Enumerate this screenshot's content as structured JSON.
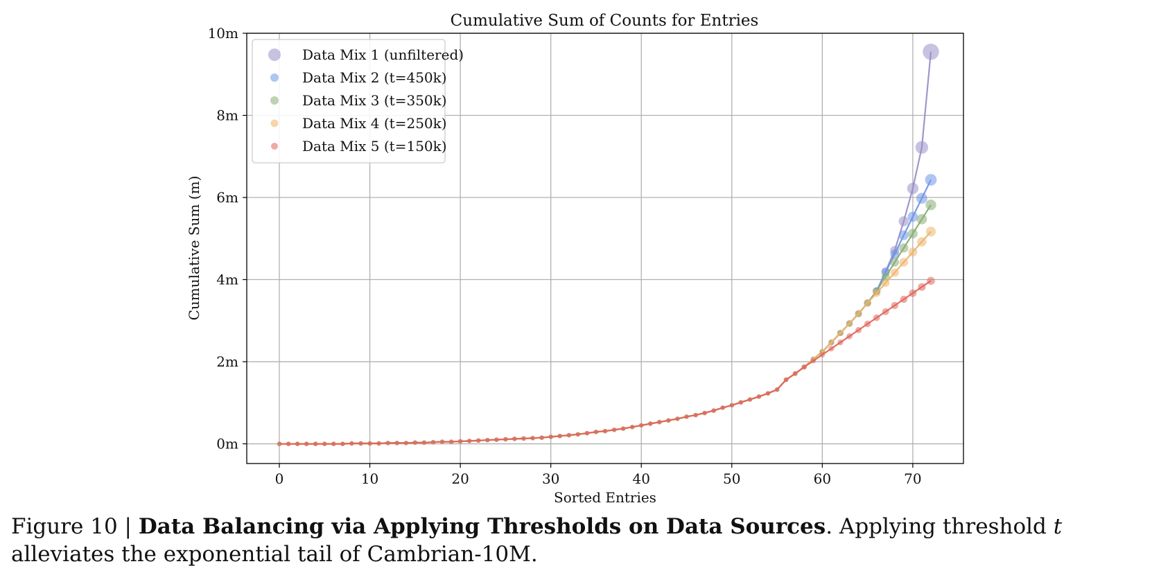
{
  "figure": {
    "caption_prefix": "Figure 10 | ",
    "caption_bold": "Data Balancing via Applying Thresholds on Data Sources",
    "caption_mid": ". Applying threshold ",
    "caption_var": "t",
    "caption_end": " alleviates the exponential tail of Cambrian-10M."
  },
  "chart_data": {
    "type": "line",
    "title": "Cumulative Sum of Counts for Entries",
    "xlabel": "Sorted Entries",
    "ylabel": "Cumulative Sum (m)",
    "xlim": [
      -3.6,
      75.6
    ],
    "ylim": [
      -0.48,
      10.0
    ],
    "x_ticks": [
      0,
      10,
      20,
      30,
      40,
      50,
      60,
      70
    ],
    "x_tick_labels": [
      "0",
      "10",
      "20",
      "30",
      "40",
      "50",
      "60",
      "70"
    ],
    "y_ticks": [
      0,
      2,
      4,
      6,
      8,
      10
    ],
    "y_tick_labels": [
      "0m",
      "2m",
      "4m",
      "6m",
      "8m",
      "10m"
    ],
    "grid": true,
    "legend_position": "top-left",
    "shared_base": {
      "x": [
        0,
        1,
        2,
        3,
        4,
        5,
        6,
        7,
        8,
        9,
        10,
        11,
        12,
        13,
        14,
        15,
        16,
        17,
        18,
        19,
        20,
        21,
        22,
        23,
        24,
        25,
        26,
        27,
        28,
        29,
        30,
        31,
        32,
        33,
        34,
        35,
        36,
        37,
        38,
        39,
        40,
        41,
        42,
        43,
        44,
        45,
        46,
        47,
        48,
        49,
        50,
        51,
        52,
        53,
        54,
        55,
        56,
        57,
        58
      ],
      "y": [
        0,
        0,
        0,
        0,
        0,
        0,
        0,
        0,
        0.01,
        0.01,
        0.01,
        0.01,
        0.02,
        0.02,
        0.02,
        0.03,
        0.03,
        0.04,
        0.05,
        0.05,
        0.06,
        0.07,
        0.08,
        0.09,
        0.1,
        0.11,
        0.12,
        0.13,
        0.14,
        0.15,
        0.17,
        0.19,
        0.21,
        0.23,
        0.26,
        0.29,
        0.31,
        0.34,
        0.37,
        0.41,
        0.45,
        0.49,
        0.53,
        0.57,
        0.61,
        0.66,
        0.7,
        0.75,
        0.81,
        0.88,
        0.94,
        1.01,
        1.08,
        1.15,
        1.23,
        1.32,
        1.56,
        1.71,
        1.87
      ]
    },
    "series": [
      {
        "name": "Data Mix 1 (unfiltered)",
        "color": "#9b8fc8",
        "tail_x": [
          59,
          60,
          61,
          62,
          63,
          64,
          65,
          66,
          67,
          68,
          69,
          70,
          71,
          72
        ],
        "tail_y": [
          2.06,
          2.24,
          2.47,
          2.7,
          2.93,
          3.17,
          3.43,
          3.72,
          4.2,
          4.71,
          5.42,
          6.22,
          7.22,
          9.55
        ]
      },
      {
        "name": "Data Mix 2 (t=450k)",
        "color": "#6f96e6",
        "tail_x": [
          59,
          60,
          61,
          62,
          63,
          64,
          65,
          66,
          67,
          68,
          69,
          70,
          71,
          72
        ],
        "tail_y": [
          2.06,
          2.24,
          2.47,
          2.7,
          2.93,
          3.17,
          3.43,
          3.72,
          4.18,
          4.62,
          5.08,
          5.53,
          5.98,
          6.43
        ]
      },
      {
        "name": "Data Mix 3 (t=350k)",
        "color": "#86ad73",
        "tail_x": [
          59,
          60,
          61,
          62,
          63,
          64,
          65,
          66,
          67,
          68,
          69,
          70,
          71,
          72
        ],
        "tail_y": [
          2.06,
          2.24,
          2.47,
          2.7,
          2.93,
          3.17,
          3.43,
          3.72,
          4.07,
          4.42,
          4.77,
          5.12,
          5.47,
          5.82
        ]
      },
      {
        "name": "Data Mix 4 (t=250k)",
        "color": "#edb56a",
        "tail_x": [
          59,
          60,
          61,
          62,
          63,
          64,
          65,
          66,
          67,
          68,
          69,
          70,
          71,
          72
        ],
        "tail_y": [
          2.06,
          2.24,
          2.47,
          2.7,
          2.93,
          3.17,
          3.43,
          3.67,
          3.92,
          4.17,
          4.42,
          4.67,
          4.92,
          5.17
        ]
      },
      {
        "name": "Data Mix 5 (t=150k)",
        "color": "#e0655a",
        "tail_x": [
          59,
          60,
          61,
          62,
          63,
          64,
          65,
          66,
          67,
          68,
          69,
          70,
          71,
          72
        ],
        "tail_y": [
          2.02,
          2.17,
          2.32,
          2.47,
          2.62,
          2.77,
          2.92,
          3.07,
          3.22,
          3.37,
          3.52,
          3.67,
          3.82,
          3.97
        ]
      }
    ]
  }
}
